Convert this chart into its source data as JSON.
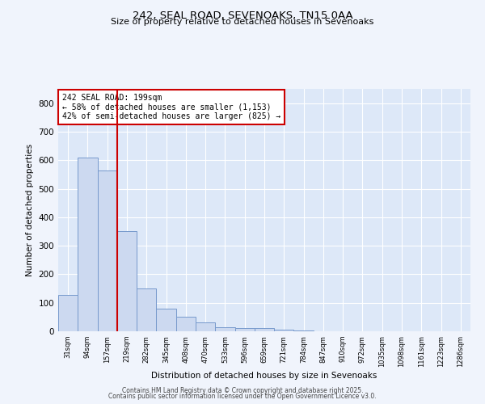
{
  "title1": "242, SEAL ROAD, SEVENOAKS, TN15 0AA",
  "title2": "Size of property relative to detached houses in Sevenoaks",
  "xlabel": "Distribution of detached houses by size in Sevenoaks",
  "ylabel": "Number of detached properties",
  "categories": [
    "31sqm",
    "94sqm",
    "157sqm",
    "219sqm",
    "282sqm",
    "345sqm",
    "408sqm",
    "470sqm",
    "533sqm",
    "596sqm",
    "659sqm",
    "721sqm",
    "784sqm",
    "847sqm",
    "910sqm",
    "972sqm",
    "1035sqm",
    "1098sqm",
    "1161sqm",
    "1223sqm",
    "1286sqm"
  ],
  "values": [
    128,
    608,
    565,
    350,
    150,
    78,
    52,
    30,
    15,
    12,
    10,
    5,
    3,
    0,
    0,
    0,
    0,
    0,
    0,
    0,
    0
  ],
  "bar_color": "#ccd9f0",
  "bar_edge_color": "#7799cc",
  "red_line_x": 2.5,
  "annotation_title": "242 SEAL ROAD: 199sqm",
  "annotation_line1": "← 58% of detached houses are smaller (1,153)",
  "annotation_line2": "42% of semi-detached houses are larger (825) →",
  "annotation_box_color": "#ffffff",
  "annotation_box_edge": "#cc0000",
  "ylim": [
    0,
    850
  ],
  "yticks": [
    0,
    100,
    200,
    300,
    400,
    500,
    600,
    700,
    800
  ],
  "plot_bg_color": "#dde8f8",
  "fig_bg_color": "#f0f4fc",
  "footer1": "Contains HM Land Registry data © Crown copyright and database right 2025.",
  "footer2": "Contains public sector information licensed under the Open Government Licence v3.0."
}
